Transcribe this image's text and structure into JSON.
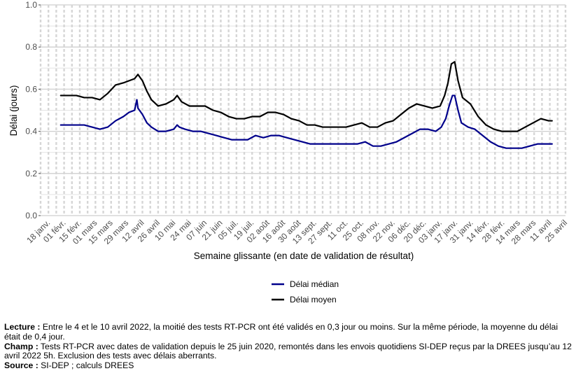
{
  "chart_data": {
    "type": "line",
    "title": "",
    "xlabel": "Semaine glissante (en date de validation de résultat)",
    "ylabel": "Délai (jours)",
    "ylim": [
      0,
      1.0
    ],
    "yticks": [
      0.0,
      0.2,
      0.4,
      0.6,
      0.8,
      1.0
    ],
    "ytick_labels": [
      "0.0",
      "0.2",
      "0.4",
      "0.6",
      "0.8",
      "1.0"
    ],
    "x_range": [
      "2021-01-11",
      "2022-04-25"
    ],
    "xtick_dates": [
      "2021-01-18",
      "2021-02-01",
      "2021-02-15",
      "2021-03-01",
      "2021-03-15",
      "2021-03-29",
      "2021-04-12",
      "2021-04-26",
      "2021-05-10",
      "2021-05-24",
      "2021-06-07",
      "2021-06-21",
      "2021-07-05",
      "2021-07-19",
      "2021-08-02",
      "2021-08-16",
      "2021-08-30",
      "2021-09-13",
      "2021-09-27",
      "2021-10-11",
      "2021-10-25",
      "2021-11-08",
      "2021-11-22",
      "2021-12-06",
      "2021-12-20",
      "2022-01-03",
      "2022-01-17",
      "2022-01-31",
      "2022-02-14",
      "2022-02-28",
      "2022-03-14",
      "2022-03-28",
      "2022-04-11",
      "2022-04-25"
    ],
    "xtick_labels": [
      "18 janv.",
      "01 févr.",
      "15 févr.",
      "01 mars",
      "15 mars",
      "29 mars",
      "12 avril",
      "26 avril",
      "10 mai",
      "24 mai",
      "07 juin",
      "21 juin",
      "05 juil.",
      "19 juil.",
      "02 août",
      "16 août",
      "30 août",
      "13 sept.",
      "27 sept.",
      "11 oct.",
      "25 oct.",
      "08 nov.",
      "22 nov.",
      "06 déc.",
      "20 déc.",
      "03 janv.",
      "17 janv.",
      "31 janv.",
      "14 févr.",
      "28 févr.",
      "14 mars",
      "28 mars",
      "11 avril",
      "25 avril"
    ],
    "grid": true,
    "legend_position": "bottom",
    "series": [
      {
        "name": "Délai médian",
        "color": "#00008b",
        "points": [
          [
            "2021-01-29",
            0.43
          ],
          [
            "2021-02-05",
            0.43
          ],
          [
            "2021-02-12",
            0.43
          ],
          [
            "2021-02-19",
            0.43
          ],
          [
            "2021-02-26",
            0.42
          ],
          [
            "2021-03-05",
            0.41
          ],
          [
            "2021-03-12",
            0.42
          ],
          [
            "2021-03-19",
            0.45
          ],
          [
            "2021-03-26",
            0.47
          ],
          [
            "2021-03-31",
            0.49
          ],
          [
            "2021-04-05",
            0.5
          ],
          [
            "2021-04-07",
            0.55
          ],
          [
            "2021-04-08",
            0.51
          ],
          [
            "2021-04-12",
            0.48
          ],
          [
            "2021-04-16",
            0.44
          ],
          [
            "2021-04-20",
            0.42
          ],
          [
            "2021-04-26",
            0.4
          ],
          [
            "2021-05-03",
            0.4
          ],
          [
            "2021-05-10",
            0.41
          ],
          [
            "2021-05-13",
            0.43
          ],
          [
            "2021-05-15",
            0.42
          ],
          [
            "2021-05-20",
            0.41
          ],
          [
            "2021-05-27",
            0.4
          ],
          [
            "2021-06-03",
            0.4
          ],
          [
            "2021-06-10",
            0.39
          ],
          [
            "2021-06-17",
            0.38
          ],
          [
            "2021-06-24",
            0.37
          ],
          [
            "2021-07-01",
            0.36
          ],
          [
            "2021-07-08",
            0.36
          ],
          [
            "2021-07-15",
            0.36
          ],
          [
            "2021-07-22",
            0.38
          ],
          [
            "2021-07-29",
            0.37
          ],
          [
            "2021-08-05",
            0.38
          ],
          [
            "2021-08-12",
            0.38
          ],
          [
            "2021-08-19",
            0.37
          ],
          [
            "2021-08-26",
            0.36
          ],
          [
            "2021-09-02",
            0.35
          ],
          [
            "2021-09-09",
            0.34
          ],
          [
            "2021-09-16",
            0.34
          ],
          [
            "2021-09-23",
            0.34
          ],
          [
            "2021-09-30",
            0.34
          ],
          [
            "2021-10-07",
            0.34
          ],
          [
            "2021-10-14",
            0.34
          ],
          [
            "2021-10-21",
            0.34
          ],
          [
            "2021-10-28",
            0.35
          ],
          [
            "2021-11-04",
            0.33
          ],
          [
            "2021-11-11",
            0.33
          ],
          [
            "2021-11-18",
            0.34
          ],
          [
            "2021-11-25",
            0.35
          ],
          [
            "2021-12-02",
            0.37
          ],
          [
            "2021-12-09",
            0.39
          ],
          [
            "2021-12-16",
            0.41
          ],
          [
            "2021-12-23",
            0.41
          ],
          [
            "2021-12-30",
            0.4
          ],
          [
            "2022-01-04",
            0.42
          ],
          [
            "2022-01-08",
            0.46
          ],
          [
            "2022-01-11",
            0.52
          ],
          [
            "2022-01-14",
            0.57
          ],
          [
            "2022-01-16",
            0.57
          ],
          [
            "2022-01-19",
            0.5
          ],
          [
            "2022-01-22",
            0.44
          ],
          [
            "2022-01-28",
            0.42
          ],
          [
            "2022-02-03",
            0.41
          ],
          [
            "2022-02-10",
            0.38
          ],
          [
            "2022-02-17",
            0.35
          ],
          [
            "2022-02-24",
            0.33
          ],
          [
            "2022-03-03",
            0.32
          ],
          [
            "2022-03-10",
            0.32
          ],
          [
            "2022-03-17",
            0.32
          ],
          [
            "2022-03-24",
            0.33
          ],
          [
            "2022-03-31",
            0.34
          ],
          [
            "2022-04-07",
            0.34
          ],
          [
            "2022-04-13",
            0.34
          ]
        ]
      },
      {
        "name": "Délai moyen",
        "color": "#000000",
        "points": [
          [
            "2021-01-29",
            0.57
          ],
          [
            "2021-02-05",
            0.57
          ],
          [
            "2021-02-12",
            0.57
          ],
          [
            "2021-02-19",
            0.56
          ],
          [
            "2021-02-26",
            0.56
          ],
          [
            "2021-03-05",
            0.55
          ],
          [
            "2021-03-12",
            0.58
          ],
          [
            "2021-03-19",
            0.62
          ],
          [
            "2021-03-26",
            0.63
          ],
          [
            "2021-03-31",
            0.64
          ],
          [
            "2021-04-05",
            0.65
          ],
          [
            "2021-04-08",
            0.67
          ],
          [
            "2021-04-12",
            0.64
          ],
          [
            "2021-04-16",
            0.59
          ],
          [
            "2021-04-20",
            0.55
          ],
          [
            "2021-04-26",
            0.52
          ],
          [
            "2021-05-03",
            0.53
          ],
          [
            "2021-05-10",
            0.55
          ],
          [
            "2021-05-13",
            0.57
          ],
          [
            "2021-05-17",
            0.54
          ],
          [
            "2021-05-24",
            0.52
          ],
          [
            "2021-05-31",
            0.52
          ],
          [
            "2021-06-07",
            0.52
          ],
          [
            "2021-06-14",
            0.5
          ],
          [
            "2021-06-21",
            0.49
          ],
          [
            "2021-06-28",
            0.47
          ],
          [
            "2021-07-05",
            0.46
          ],
          [
            "2021-07-12",
            0.46
          ],
          [
            "2021-07-19",
            0.47
          ],
          [
            "2021-07-26",
            0.47
          ],
          [
            "2021-08-02",
            0.49
          ],
          [
            "2021-08-09",
            0.49
          ],
          [
            "2021-08-16",
            0.48
          ],
          [
            "2021-08-23",
            0.46
          ],
          [
            "2021-08-30",
            0.45
          ],
          [
            "2021-09-06",
            0.43
          ],
          [
            "2021-09-13",
            0.43
          ],
          [
            "2021-09-20",
            0.42
          ],
          [
            "2021-09-27",
            0.42
          ],
          [
            "2021-10-04",
            0.42
          ],
          [
            "2021-10-11",
            0.42
          ],
          [
            "2021-10-18",
            0.43
          ],
          [
            "2021-10-25",
            0.44
          ],
          [
            "2021-11-01",
            0.42
          ],
          [
            "2021-11-08",
            0.42
          ],
          [
            "2021-11-15",
            0.44
          ],
          [
            "2021-11-22",
            0.45
          ],
          [
            "2021-11-29",
            0.48
          ],
          [
            "2021-12-06",
            0.51
          ],
          [
            "2021-12-13",
            0.53
          ],
          [
            "2021-12-20",
            0.52
          ],
          [
            "2021-12-27",
            0.51
          ],
          [
            "2022-01-03",
            0.52
          ],
          [
            "2022-01-07",
            0.57
          ],
          [
            "2022-01-10",
            0.63
          ],
          [
            "2022-01-13",
            0.72
          ],
          [
            "2022-01-16",
            0.73
          ],
          [
            "2022-01-19",
            0.64
          ],
          [
            "2022-01-23",
            0.56
          ],
          [
            "2022-01-30",
            0.53
          ],
          [
            "2022-02-06",
            0.47
          ],
          [
            "2022-02-13",
            0.43
          ],
          [
            "2022-02-20",
            0.41
          ],
          [
            "2022-02-27",
            0.4
          ],
          [
            "2022-03-06",
            0.4
          ],
          [
            "2022-03-13",
            0.4
          ],
          [
            "2022-03-20",
            0.42
          ],
          [
            "2022-03-27",
            0.44
          ],
          [
            "2022-04-03",
            0.46
          ],
          [
            "2022-04-10",
            0.45
          ],
          [
            "2022-04-13",
            0.45
          ]
        ]
      }
    ]
  },
  "notes": {
    "lecture_label": "Lecture :",
    "lecture_text": " Entre le 4 et le 10 avril 2022, la moitié des tests RT-PCR ont été validés en 0,3 jour ou moins. Sur la même période, la moyenne du délai était de 0,4 jour.",
    "champ_label": "Champ :",
    "champ_text": " Tests RT-PCR avec dates de validation depuis le 25 juin 2020, remontés dans les envois quotidiens SI-DEP reçus par la DREES jusqu’au 12 avril 2022 5h. Exclusion des tests avec délais aberrants.",
    "source_label": "Source :",
    "source_text": " SI-DEP ; calculs DREES"
  }
}
